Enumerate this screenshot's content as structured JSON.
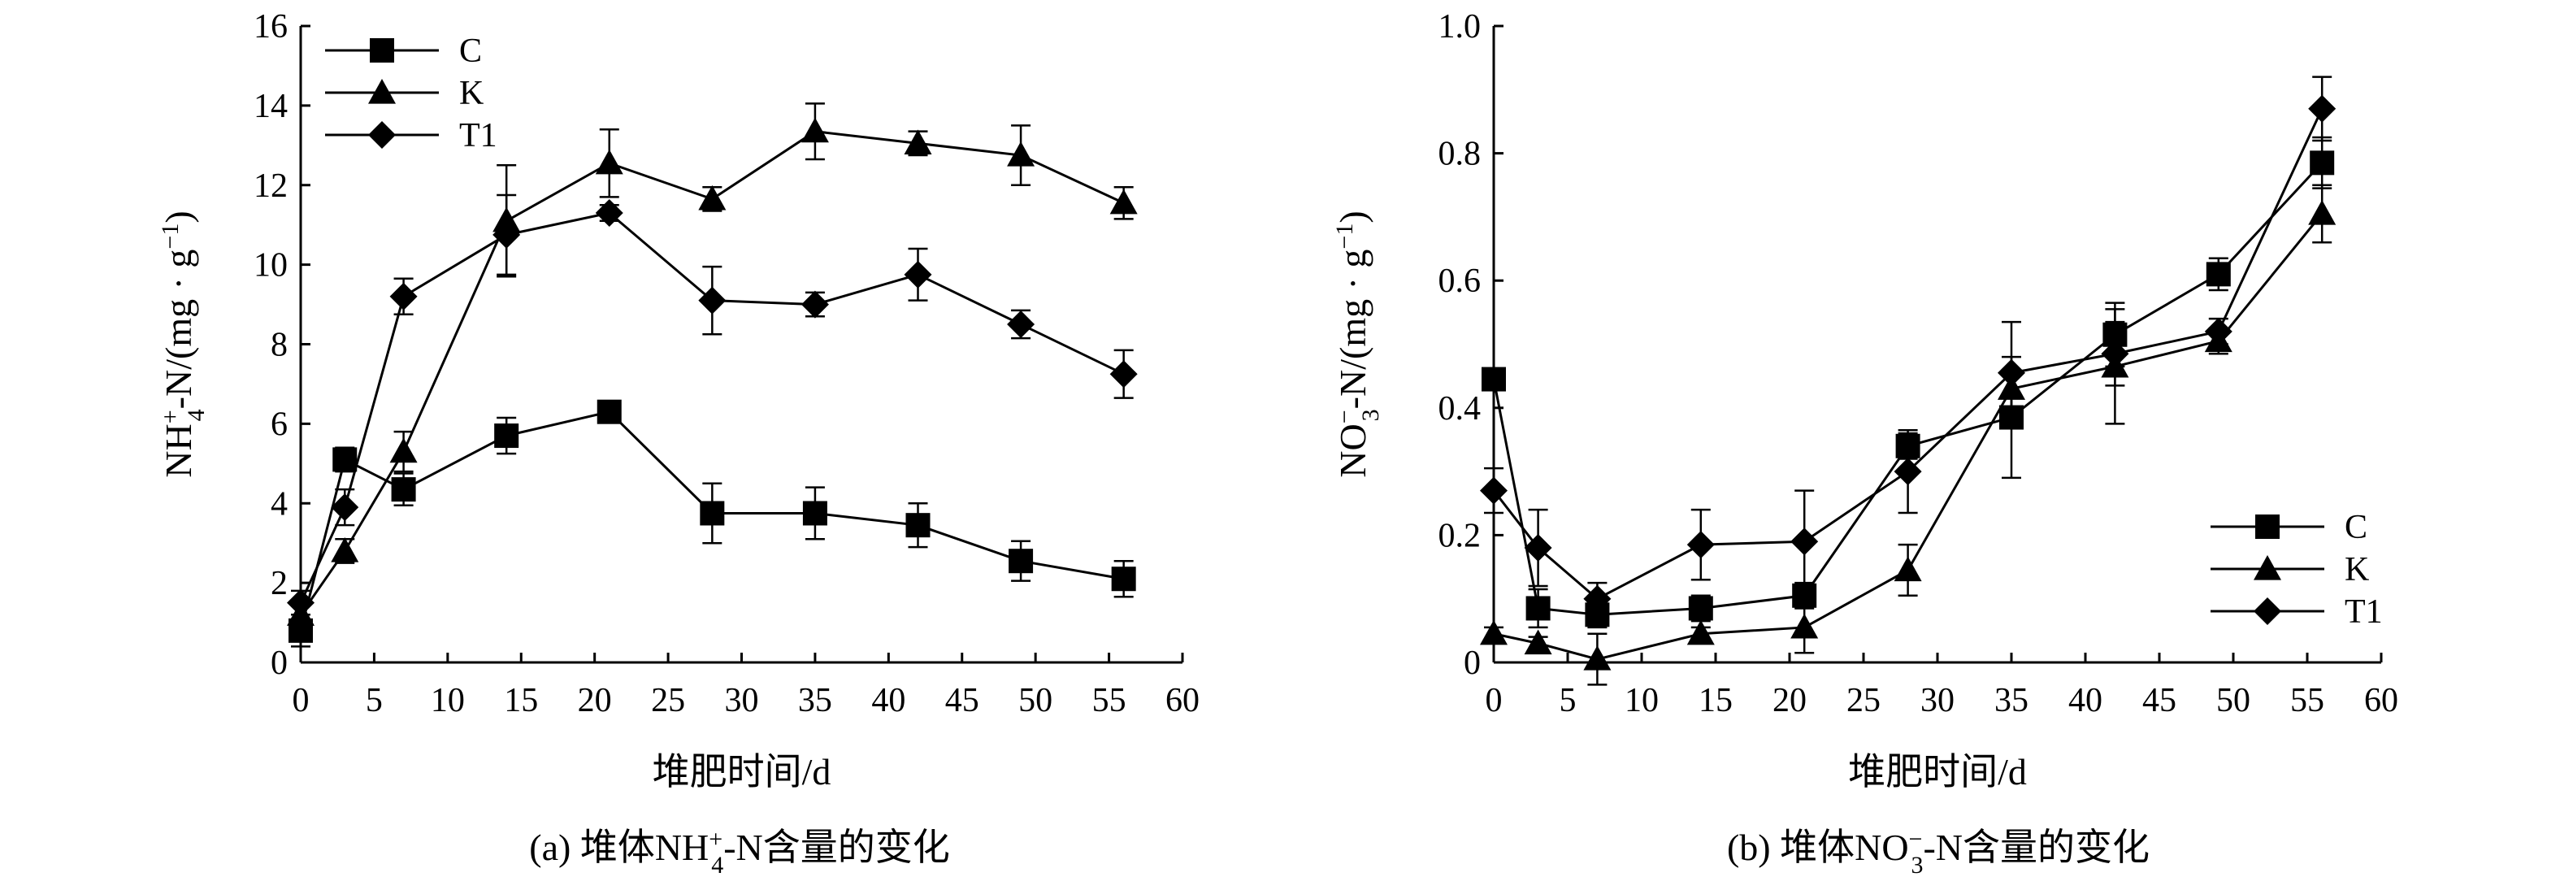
{
  "chart_data": [
    {
      "id": "a",
      "type": "line",
      "caption": {
        "prefix": "(a) 堆体NH",
        "sup": "+",
        "sub": "4",
        "suffix": "-N含量的变化"
      },
      "xlabel": "堆肥时间/d",
      "ylabel": {
        "main": "NH",
        "sup": "+",
        "sub": "4",
        "rest": "-N/(mg · g",
        "unit_sup": "−1",
        "close": ")"
      },
      "xlim": [
        0,
        60
      ],
      "ylim": [
        0,
        16
      ],
      "xticks": [
        0,
        5,
        10,
        15,
        20,
        25,
        30,
        35,
        40,
        45,
        50,
        55,
        60
      ],
      "yticks": [
        0,
        2,
        4,
        6,
        8,
        10,
        12,
        14,
        16
      ],
      "legend_position": "top-left",
      "x": [
        0,
        3,
        7,
        14,
        21,
        28,
        35,
        42,
        49,
        56
      ],
      "series": [
        {
          "name": "C",
          "marker": "square",
          "values": [
            0.8,
            5.1,
            4.35,
            5.7,
            6.3,
            3.75,
            3.75,
            3.45,
            2.55,
            2.1
          ],
          "errors": [
            0.4,
            0.3,
            0.4,
            0.45,
            0.2,
            0.75,
            0.65,
            0.55,
            0.5,
            0.45
          ]
        },
        {
          "name": "K",
          "marker": "triangle",
          "values": [
            1.2,
            2.8,
            5.3,
            11.1,
            12.55,
            11.65,
            13.35,
            13.05,
            12.75,
            11.55
          ],
          "errors": [
            0.3,
            0.3,
            0.5,
            1.4,
            0.85,
            0.3,
            0.7,
            0.3,
            0.75,
            0.4
          ]
        },
        {
          "name": "T1",
          "marker": "diamond",
          "values": [
            1.5,
            3.9,
            9.2,
            10.75,
            11.3,
            9.1,
            9.0,
            9.75,
            8.5,
            7.25
          ],
          "errors": [
            0.3,
            0.45,
            0.45,
            1.0,
            0.2,
            0.85,
            0.3,
            0.65,
            0.35,
            0.6
          ]
        }
      ]
    },
    {
      "id": "b",
      "type": "line",
      "caption": {
        "prefix": "(b) 堆体NO",
        "sup": "−",
        "sub": "3",
        "suffix": "-N含量的变化"
      },
      "xlabel": "堆肥时间/d",
      "ylabel": {
        "main": "NO",
        "sup": "−",
        "sub": "3",
        "rest": "-N/(mg · g",
        "unit_sup": "−1",
        "close": ")"
      },
      "xlim": [
        0,
        60
      ],
      "ylim": [
        0,
        1.0
      ],
      "xticks": [
        0,
        5,
        10,
        15,
        20,
        25,
        30,
        35,
        40,
        45,
        50,
        55,
        60
      ],
      "yticks": [
        0,
        0.2,
        0.4,
        0.6,
        0.8,
        1.0
      ],
      "ytick_labels": [
        "0",
        "0.2",
        "0.4",
        "0.6",
        "0.8",
        "1.0"
      ],
      "legend_position": "bottom-right",
      "x": [
        0,
        3,
        7,
        14,
        21,
        28,
        35,
        42,
        49,
        56
      ],
      "series": [
        {
          "name": "C",
          "marker": "square",
          "values": [
            0.445,
            0.085,
            0.075,
            0.085,
            0.105,
            0.34,
            0.385,
            0.515,
            0.61,
            0.785
          ],
          "errors": [
            0.01,
            0.03,
            0.02,
            0.02,
            0.02,
            0.02,
            0.095,
            0.05,
            0.025,
            0.04
          ]
        },
        {
          "name": "K",
          "marker": "triangle",
          "values": [
            0.045,
            0.03,
            0.005,
            0.045,
            0.055,
            0.145,
            0.43,
            0.465,
            0.505,
            0.705
          ],
          "errors": [
            0.01,
            0.01,
            0.04,
            0.01,
            0.04,
            0.04,
            0.03,
            0.09,
            0.02,
            0.045
          ]
        },
        {
          "name": "T1",
          "marker": "diamond",
          "values": [
            0.27,
            0.18,
            0.1,
            0.185,
            0.19,
            0.3,
            0.455,
            0.485,
            0.52,
            0.87
          ],
          "errors": [
            0.035,
            0.06,
            0.025,
            0.055,
            0.08,
            0.065,
            0.08,
            0.05,
            0.02,
            0.05
          ]
        }
      ]
    }
  ]
}
